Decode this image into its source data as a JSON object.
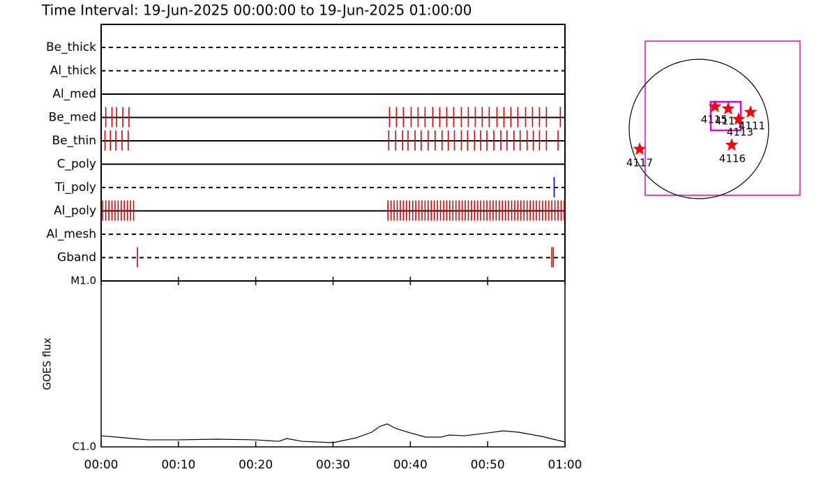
{
  "chart_data": [
    {
      "type": "timeline",
      "title": "Time Interval: 19-Jun-2025 00:00:00 to 19-Jun-2025 01:00:00",
      "xlim": [
        0,
        60
      ],
      "rows": [
        {
          "name": "Be_thick",
          "style": "dashed",
          "color": "#e00000",
          "times": []
        },
        {
          "name": "Al_thick",
          "style": "dashed",
          "color": "#e00000",
          "times": []
        },
        {
          "name": "Al_med",
          "style": "solid",
          "color": "#e00000",
          "times": []
        },
        {
          "name": "Be_med",
          "style": "solid",
          "color": "#e00000",
          "times": [
            0.6,
            1.4,
            2.0,
            2.8,
            3.6,
            37.3,
            38.2,
            39.1,
            40.1,
            41.0,
            41.9,
            42.9,
            43.8,
            44.7,
            45.6,
            46.6,
            47.5,
            48.4,
            49.3,
            50.2,
            51.2,
            52.1,
            53.0,
            53.9,
            54.9,
            55.8,
            56.7,
            57.6,
            59.4
          ]
        },
        {
          "name": "Be_thin",
          "style": "solid",
          "color": "#e00000",
          "times": [
            0.5,
            1.2,
            1.9,
            2.7,
            3.5,
            37.2,
            38.1,
            39.0,
            39.7,
            40.6,
            41.4,
            42.3,
            43.2,
            44.1,
            44.9,
            45.7,
            46.6,
            47.4,
            48.3,
            49.1,
            49.9,
            50.8,
            51.7,
            52.5,
            53.4,
            54.2,
            55.1,
            55.9,
            56.7,
            57.6,
            59.1
          ]
        },
        {
          "name": "C_poly",
          "style": "solid",
          "color": "#e00000",
          "times": []
        },
        {
          "name": "Ti_poly",
          "style": "dashed",
          "color": "#0000c0",
          "times": [
            58.6
          ]
        },
        {
          "name": "Al_poly",
          "style": "solid",
          "color": "#e00000",
          "times": [
            0.2,
            0.6,
            1.0,
            1.4,
            1.8,
            2.2,
            2.6,
            3.0,
            3.4,
            3.8,
            4.2,
            37.1,
            37.5,
            37.9,
            38.3,
            38.7,
            39.1,
            39.5,
            39.9,
            40.3,
            40.7,
            41.1,
            41.5,
            41.9,
            42.3,
            42.7,
            43.1,
            43.5,
            43.9,
            44.3,
            44.7,
            45.1,
            45.5,
            45.9,
            46.3,
            46.7,
            47.1,
            47.5,
            47.9,
            48.3,
            48.7,
            49.1,
            49.5,
            49.9,
            50.3,
            50.7,
            51.1,
            51.5,
            51.9,
            52.3,
            52.7,
            53.1,
            53.5,
            53.9,
            54.3,
            54.7,
            55.1,
            55.5,
            55.9,
            56.3,
            56.7,
            57.1,
            57.5,
            57.9,
            58.3,
            58.7,
            59.1,
            59.5,
            59.9
          ]
        },
        {
          "name": "Al_mesh",
          "style": "dashed",
          "color": "#e00000",
          "times": []
        },
        {
          "name": "Gband",
          "style": "dashed",
          "color": "#e00000",
          "times": [
            4.7,
            58.3,
            58.5
          ]
        }
      ]
    },
    {
      "type": "line",
      "ylabel": "GOES flux",
      "log_scale": true,
      "color": "#000000",
      "x": [
        0,
        3,
        6,
        10,
        15,
        20,
        23,
        24,
        26,
        30,
        33,
        35,
        36,
        37,
        38,
        40,
        42,
        44,
        45,
        47,
        50,
        52,
        54,
        57,
        60
      ],
      "values": [
        1.167e-06,
        1.134e-06,
        1.102e-06,
        1.102e-06,
        1.112e-06,
        1.102e-06,
        1.08e-06,
        1.123e-06,
        1.08e-06,
        1.06e-06,
        1.134e-06,
        1.225e-06,
        1.324e-06,
        1.376e-06,
        1.298e-06,
        1.213e-06,
        1.145e-06,
        1.145e-06,
        1.179e-06,
        1.167e-06,
        1.213e-06,
        1.249e-06,
        1.225e-06,
        1.156e-06,
        1.07e-06
      ],
      "xlim": [
        0,
        60
      ],
      "xticks": [
        {
          "value": 0,
          "label": "00:00"
        },
        {
          "value": 10,
          "label": "00:10"
        },
        {
          "value": 20,
          "label": "00:20"
        },
        {
          "value": 30,
          "label": "00:30"
        },
        {
          "value": 40,
          "label": "00:40"
        },
        {
          "value": 50,
          "label": "00:50"
        },
        {
          "value": 60,
          "label": "01:00"
        }
      ],
      "ylim": [
        1e-06,
        1e-05
      ],
      "yticks": [
        {
          "value": 1e-06,
          "label": "C1.0"
        },
        {
          "value": 1e-05,
          "label": "M1.0"
        }
      ]
    }
  ],
  "map": {
    "regions": [
      {
        "label": "4115"
      },
      {
        "label": "4114"
      },
      {
        "label": "4113"
      },
      {
        "label": "4111"
      },
      {
        "label": "4116"
      },
      {
        "label": "4117"
      }
    ]
  }
}
